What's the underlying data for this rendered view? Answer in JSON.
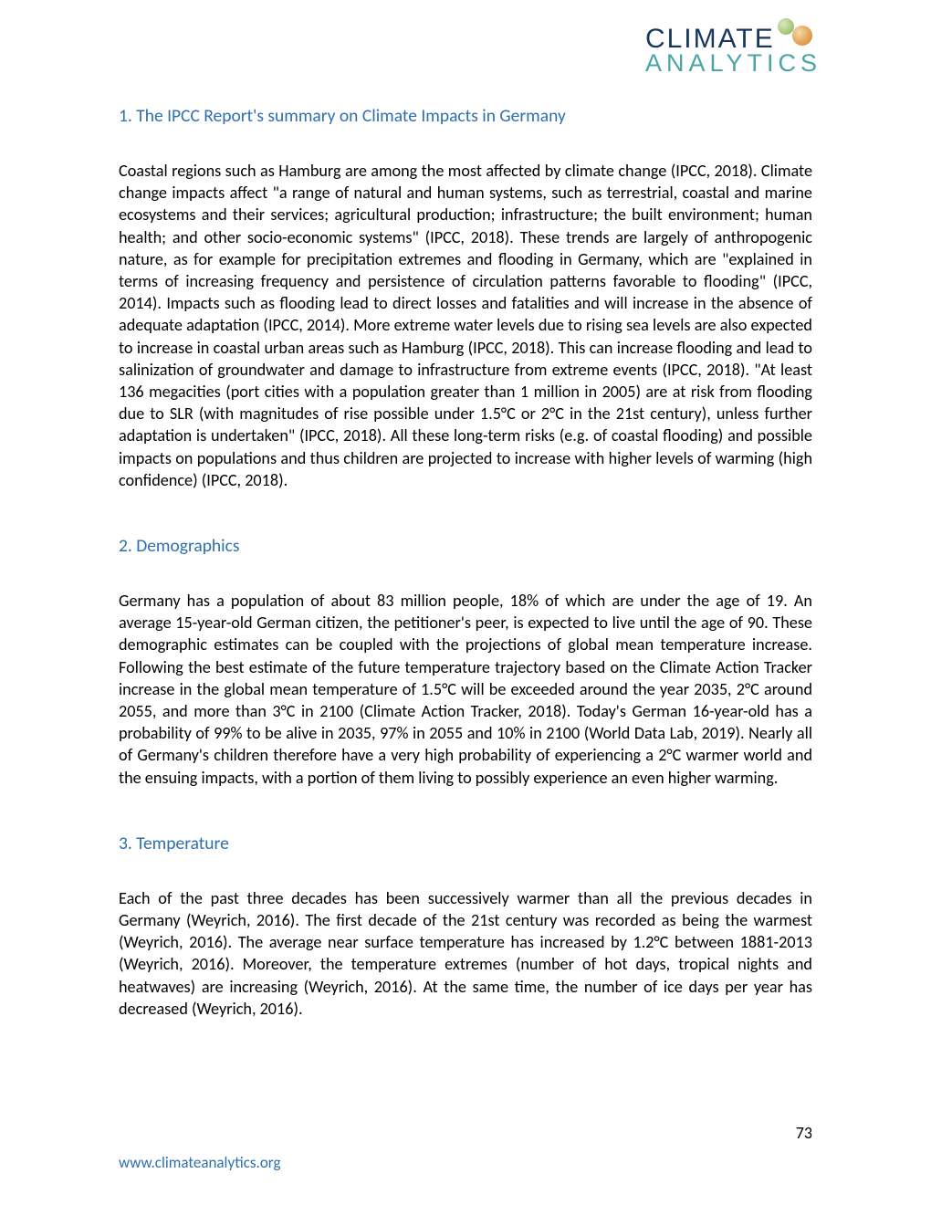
{
  "logo": {
    "line1": "CLIMATE",
    "line2": "ANALYTICS",
    "color_primary": "#18375f",
    "color_secondary": "#4aa5a5"
  },
  "sections": [
    {
      "heading": "1. The IPCC Report's summary on Climate Impacts in Germany",
      "body": "Coastal regions such as Hamburg are among the most affected by climate change (IPCC, 2018). Climate change impacts affect \"a range of natural and human systems, such as terrestrial, coastal and marine ecosystems and their services; agricultural production; infrastructure; the built environment; human health; and other socio-economic systems\" (IPCC, 2018). These trends are largely of anthropogenic nature, as for example for precipitation extremes and flooding in Germany, which are \"explained in terms of increasing frequency and persistence of circulation patterns favorable to flooding\" (IPCC, 2014). Impacts such as flooding lead to direct losses and fatalities and will increase in the absence of adequate adaptation (IPCC, 2014). More extreme water levels due to rising sea levels are also expected to increase in coastal urban areas such as Hamburg (IPCC, 2018). This can increase flooding and lead to salinization of groundwater and damage to infrastructure from extreme events (IPCC, 2018). \"At least 136 megacities (port cities with a population greater than 1 million in 2005) are at risk from flooding due to SLR (with magnitudes of rise possible under 1.5°C or 2°C in the 21st century), unless further adaptation is undertaken\" (IPCC, 2018). All these long-term risks (e.g. of coastal flooding) and possible impacts on populations and thus children are projected to increase with higher levels of warming (high confidence) (IPCC, 2018)."
    },
    {
      "heading": "2. Demographics",
      "body": "Germany has a population of about 83 million people, 18% of which are under the age of 19. An average 15-year-old German citizen, the petitioner's peer, is expected to live until the age of 90. These demographic estimates can be coupled with the projections of global mean temperature increase. Following the best estimate of the future temperature trajectory based on the Climate Action Tracker increase in the global mean temperature of 1.5°C will be exceeded around the year 2035, 2°C around 2055, and more than 3°C in 2100 (Climate Action Tracker, 2018). Today's German 16-year-old has a probability of 99% to be alive in 2035, 97% in 2055 and 10% in 2100 (World Data Lab, 2019). Nearly all of Germany's children therefore have a very high probability of experiencing a 2°C warmer world and the ensuing impacts, with a portion of them living to possibly experience an even higher warming."
    },
    {
      "heading": "3. Temperature",
      "body": "Each of the past three decades has been successively warmer than all the previous decades in Germany (Weyrich, 2016). The first decade of the 21st century was recorded as being the warmest (Weyrich, 2016). The average near surface temperature has increased by 1.2°C between 1881-2013 (Weyrich, 2016). Moreover, the temperature extremes (number of hot days, tropical nights and heatwaves) are increasing (Weyrich, 2016). At the same time, the number of ice days per year has decreased (Weyrich, 2016)."
    }
  ],
  "page_number": "73",
  "footer_url": "www.climateanalytics.org",
  "colors": {
    "heading": "#2e6faf",
    "body": "#000000",
    "link": "#2e6faf",
    "background": "#ffffff"
  },
  "typography": {
    "heading_fontsize": 19.5,
    "body_fontsize": 18.2,
    "body_lineheight": 1.33,
    "font_family": "Calibri"
  }
}
